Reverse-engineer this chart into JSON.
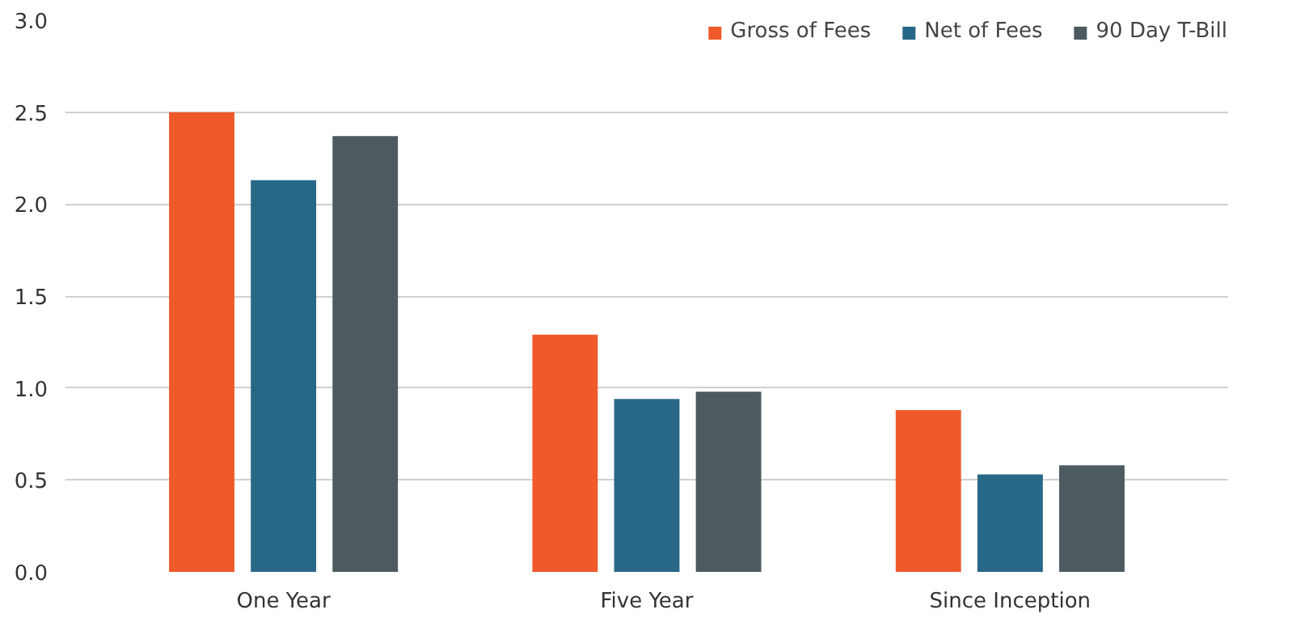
{
  "chart_data": {
    "type": "bar",
    "categories": [
      "One Year",
      "Five Year",
      "Since Inception"
    ],
    "series": [
      {
        "name": "Gross of Fees",
        "color": "#ee5a2a",
        "values": [
          2.5,
          1.29,
          0.88
        ]
      },
      {
        "name": "Net of Fees",
        "color": "#286887",
        "values": [
          2.13,
          0.94,
          0.53
        ]
      },
      {
        "name": "90 Day T-Bill",
        "color": "#4d5b61",
        "values": [
          2.37,
          0.98,
          0.58
        ]
      }
    ],
    "ylim": [
      0,
      3
    ],
    "yticks": [
      {
        "value": 0,
        "label": "0.0"
      },
      {
        "value": 0.5,
        "label": "0.5"
      },
      {
        "value": 1,
        "label": "1.0"
      },
      {
        "value": 1.5,
        "label": "1.5"
      },
      {
        "value": 2,
        "label": "2.0"
      },
      {
        "value": 2.5,
        "label": "2.5"
      },
      {
        "value": 3,
        "label": "3.0"
      }
    ],
    "grid": "y",
    "legend": "top right"
  }
}
